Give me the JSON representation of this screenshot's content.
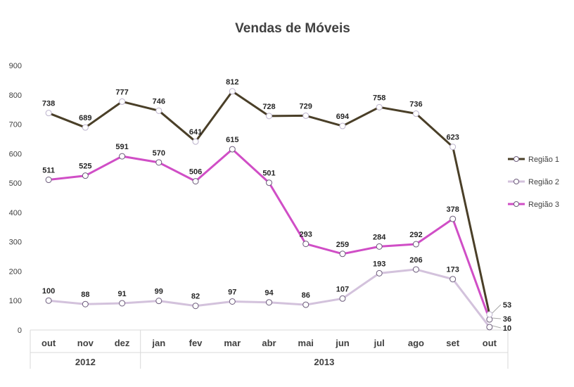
{
  "chart_data": {
    "type": "line",
    "title": "Vendas de Móveis",
    "categories": [
      "out",
      "nov",
      "dez",
      "jan",
      "fev",
      "mar",
      "abr",
      "mai",
      "jun",
      "jul",
      "ago",
      "set",
      "out"
    ],
    "category_groups": [
      {
        "label": "2012",
        "count": 3
      },
      {
        "label": "2013",
        "count": 10
      }
    ],
    "series": [
      {
        "name": "Região 1",
        "color": "#4a3f28",
        "values": [
          738,
          689,
          777,
          746,
          641,
          812,
          728,
          729,
          694,
          758,
          736,
          623,
          53
        ]
      },
      {
        "name": "Região 2",
        "color": "#d3c2dc",
        "values": [
          100,
          88,
          91,
          99,
          82,
          97,
          94,
          86,
          107,
          193,
          206,
          173,
          10
        ]
      },
      {
        "name": "Região 3",
        "color": "#d04ec6",
        "values": [
          511,
          525,
          591,
          570,
          506,
          615,
          501,
          293,
          259,
          284,
          292,
          378,
          36
        ]
      }
    ],
    "data_labels": [
      {
        "series": "Região 1",
        "values": [
          738,
          689,
          777,
          746,
          641,
          812,
          728,
          729,
          694,
          758,
          736,
          623,
          53
        ]
      },
      {
        "series": "Região 2",
        "values": [
          100,
          88,
          91,
          99,
          82,
          97,
          94,
          86,
          107,
          193,
          206,
          173,
          10
        ]
      },
      {
        "series": "Região 3",
        "values": [
          511,
          525,
          591,
          570,
          506,
          615,
          501,
          293,
          259,
          284,
          292,
          378,
          36
        ]
      }
    ],
    "ylim": [
      0,
      900
    ],
    "yticks": [
      0,
      100,
      200,
      300,
      400,
      500,
      600,
      700,
      800,
      900
    ],
    "xlabel": "",
    "ylabel": "",
    "grid": false,
    "legend_position": "right"
  }
}
